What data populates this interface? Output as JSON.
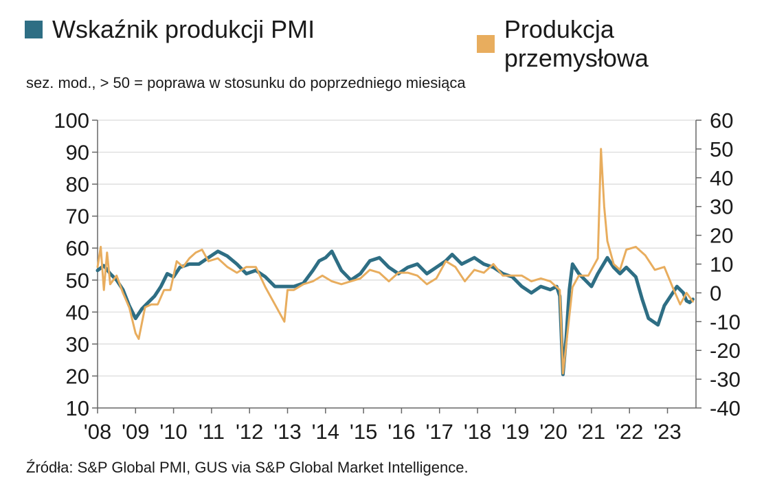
{
  "legend": {
    "pmi_label": "Wskaźnik produkcji PMI",
    "ip_label": "Produkcja przemysłowa"
  },
  "subtitle": "sez. mod., > 50 = poprawa w stosunku do poprzedniego miesiąca",
  "source": "Źródła:  S&P Global PMI, GUS via S&P Global Market Intelligence.",
  "colors": {
    "pmi": "#2e6e84",
    "ip": "#e8ad5e",
    "axis": "#666666",
    "grid": "#d9d9d9"
  },
  "chart_data": {
    "type": "line",
    "title": "",
    "x_start": "2008-01",
    "x_end": "2023-09",
    "x_ticks": [
      "'08",
      "'09",
      "'10",
      "'11",
      "'12",
      "'13",
      "'14",
      "'15",
      "'16",
      "'17",
      "'18",
      "'19",
      "'20",
      "'21",
      "'22",
      "'23"
    ],
    "y_left": {
      "min": 10,
      "max": 100,
      "ticks": [
        "100",
        "90",
        "80",
        "70",
        "60",
        "50",
        "40",
        "30",
        "20",
        "10"
      ]
    },
    "y_right": {
      "min": -40,
      "max": 60,
      "ticks": [
        "60",
        "50",
        "40",
        "30",
        "20",
        "10",
        "0",
        "-10",
        "-20",
        "-30",
        "-40"
      ]
    },
    "grid": "horizontal",
    "legend_position": "top",
    "series": [
      {
        "name": "Wskaźnik produkcji PMI",
        "axis": "left",
        "color": "#2e6e84",
        "points": [
          [
            "2008-01",
            53
          ],
          [
            "2008-03",
            54.5
          ],
          [
            "2008-05",
            52
          ],
          [
            "2008-07",
            50
          ],
          [
            "2008-09",
            47
          ],
          [
            "2008-11",
            42
          ],
          [
            "2009-01",
            38
          ],
          [
            "2009-03",
            41
          ],
          [
            "2009-05",
            43
          ],
          [
            "2009-07",
            45
          ],
          [
            "2009-09",
            48
          ],
          [
            "2009-11",
            52
          ],
          [
            "2010-01",
            51
          ],
          [
            "2010-03",
            54
          ],
          [
            "2010-06",
            55
          ],
          [
            "2010-09",
            55
          ],
          [
            "2010-12",
            57
          ],
          [
            "2011-03",
            59
          ],
          [
            "2011-06",
            57.5
          ],
          [
            "2011-09",
            55
          ],
          [
            "2011-12",
            52
          ],
          [
            "2012-03",
            53
          ],
          [
            "2012-06",
            51
          ],
          [
            "2012-09",
            48
          ],
          [
            "2012-12",
            48
          ],
          [
            "2013-03",
            48
          ],
          [
            "2013-06",
            49
          ],
          [
            "2013-09",
            53
          ],
          [
            "2013-11",
            56
          ],
          [
            "2014-01",
            57
          ],
          [
            "2014-03",
            59
          ],
          [
            "2014-06",
            53
          ],
          [
            "2014-09",
            50
          ],
          [
            "2014-12",
            52
          ],
          [
            "2015-03",
            56
          ],
          [
            "2015-06",
            57
          ],
          [
            "2015-09",
            54
          ],
          [
            "2015-12",
            52
          ],
          [
            "2016-03",
            54
          ],
          [
            "2016-06",
            55
          ],
          [
            "2016-09",
            52
          ],
          [
            "2016-12",
            54
          ],
          [
            "2017-03",
            56
          ],
          [
            "2017-05",
            58
          ],
          [
            "2017-08",
            55
          ],
          [
            "2017-12",
            57
          ],
          [
            "2018-03",
            55
          ],
          [
            "2018-06",
            54
          ],
          [
            "2018-09",
            52
          ],
          [
            "2018-12",
            51
          ],
          [
            "2019-03",
            48
          ],
          [
            "2019-06",
            46
          ],
          [
            "2019-09",
            48
          ],
          [
            "2019-12",
            47
          ],
          [
            "2020-02",
            48
          ],
          [
            "2020-03",
            45
          ],
          [
            "2020-04",
            20.5
          ],
          [
            "2020-05",
            32
          ],
          [
            "2020-06",
            47
          ],
          [
            "2020-07",
            55
          ],
          [
            "2020-09",
            52
          ],
          [
            "2020-11",
            50
          ],
          [
            "2021-01",
            48
          ],
          [
            "2021-03",
            52
          ],
          [
            "2021-06",
            57
          ],
          [
            "2021-08",
            54
          ],
          [
            "2021-10",
            52
          ],
          [
            "2021-12",
            54
          ],
          [
            "2022-03",
            51
          ],
          [
            "2022-05",
            44
          ],
          [
            "2022-07",
            38
          ],
          [
            "2022-10",
            36
          ],
          [
            "2022-12",
            42
          ],
          [
            "2023-02",
            45
          ],
          [
            "2023-04",
            48
          ],
          [
            "2023-06",
            46
          ],
          [
            "2023-07",
            43.5
          ],
          [
            "2023-08",
            43
          ],
          [
            "2023-09",
            44
          ]
        ]
      },
      {
        "name": "Produkcja przemysłowa",
        "axis": "right",
        "color": "#e8ad5e",
        "points": [
          [
            "2008-01",
            9
          ],
          [
            "2008-02",
            16
          ],
          [
            "2008-03",
            1
          ],
          [
            "2008-04",
            14
          ],
          [
            "2008-05",
            3
          ],
          [
            "2008-07",
            6
          ],
          [
            "2008-09",
            0
          ],
          [
            "2008-11",
            -5
          ],
          [
            "2009-01",
            -14
          ],
          [
            "2009-02",
            -16
          ],
          [
            "2009-04",
            -5
          ],
          [
            "2009-06",
            -4
          ],
          [
            "2009-08",
            -4
          ],
          [
            "2009-10",
            1
          ],
          [
            "2009-12",
            1
          ],
          [
            "2010-02",
            11
          ],
          [
            "2010-04",
            9
          ],
          [
            "2010-06",
            12
          ],
          [
            "2010-08",
            14
          ],
          [
            "2010-10",
            15
          ],
          [
            "2010-12",
            11
          ],
          [
            "2011-03",
            12
          ],
          [
            "2011-06",
            9
          ],
          [
            "2011-09",
            7
          ],
          [
            "2011-12",
            9
          ],
          [
            "2012-03",
            9
          ],
          [
            "2012-06",
            2
          ],
          [
            "2012-09",
            -4
          ],
          [
            "2012-12",
            -10
          ],
          [
            "2013-01",
            1
          ],
          [
            "2013-03",
            1
          ],
          [
            "2013-06",
            3
          ],
          [
            "2013-09",
            4
          ],
          [
            "2013-12",
            6
          ],
          [
            "2014-03",
            4
          ],
          [
            "2014-06",
            3
          ],
          [
            "2014-09",
            4
          ],
          [
            "2014-12",
            5
          ],
          [
            "2015-03",
            8
          ],
          [
            "2015-06",
            7
          ],
          [
            "2015-09",
            4
          ],
          [
            "2015-12",
            7
          ],
          [
            "2016-03",
            7
          ],
          [
            "2016-06",
            6
          ],
          [
            "2016-09",
            3
          ],
          [
            "2016-12",
            5
          ],
          [
            "2017-03",
            11
          ],
          [
            "2017-06",
            9
          ],
          [
            "2017-09",
            4
          ],
          [
            "2017-12",
            8
          ],
          [
            "2018-03",
            7
          ],
          [
            "2018-06",
            10
          ],
          [
            "2018-09",
            6
          ],
          [
            "2018-12",
            6
          ],
          [
            "2019-03",
            6
          ],
          [
            "2019-06",
            4
          ],
          [
            "2019-09",
            5
          ],
          [
            "2019-12",
            4
          ],
          [
            "2020-03",
            1
          ],
          [
            "2020-04",
            -28
          ],
          [
            "2020-05",
            -18
          ],
          [
            "2020-07",
            2
          ],
          [
            "2020-09",
            6
          ],
          [
            "2020-12",
            6
          ],
          [
            "2021-03",
            12
          ],
          [
            "2021-04",
            50
          ],
          [
            "2021-05",
            30
          ],
          [
            "2021-06",
            18
          ],
          [
            "2021-08",
            10
          ],
          [
            "2021-10",
            8
          ],
          [
            "2021-12",
            15
          ],
          [
            "2022-03",
            16
          ],
          [
            "2022-06",
            13
          ],
          [
            "2022-09",
            8
          ],
          [
            "2022-12",
            9
          ],
          [
            "2023-03",
            1
          ],
          [
            "2023-05",
            -4
          ],
          [
            "2023-07",
            0
          ],
          [
            "2023-09",
            -3
          ]
        ]
      }
    ]
  }
}
